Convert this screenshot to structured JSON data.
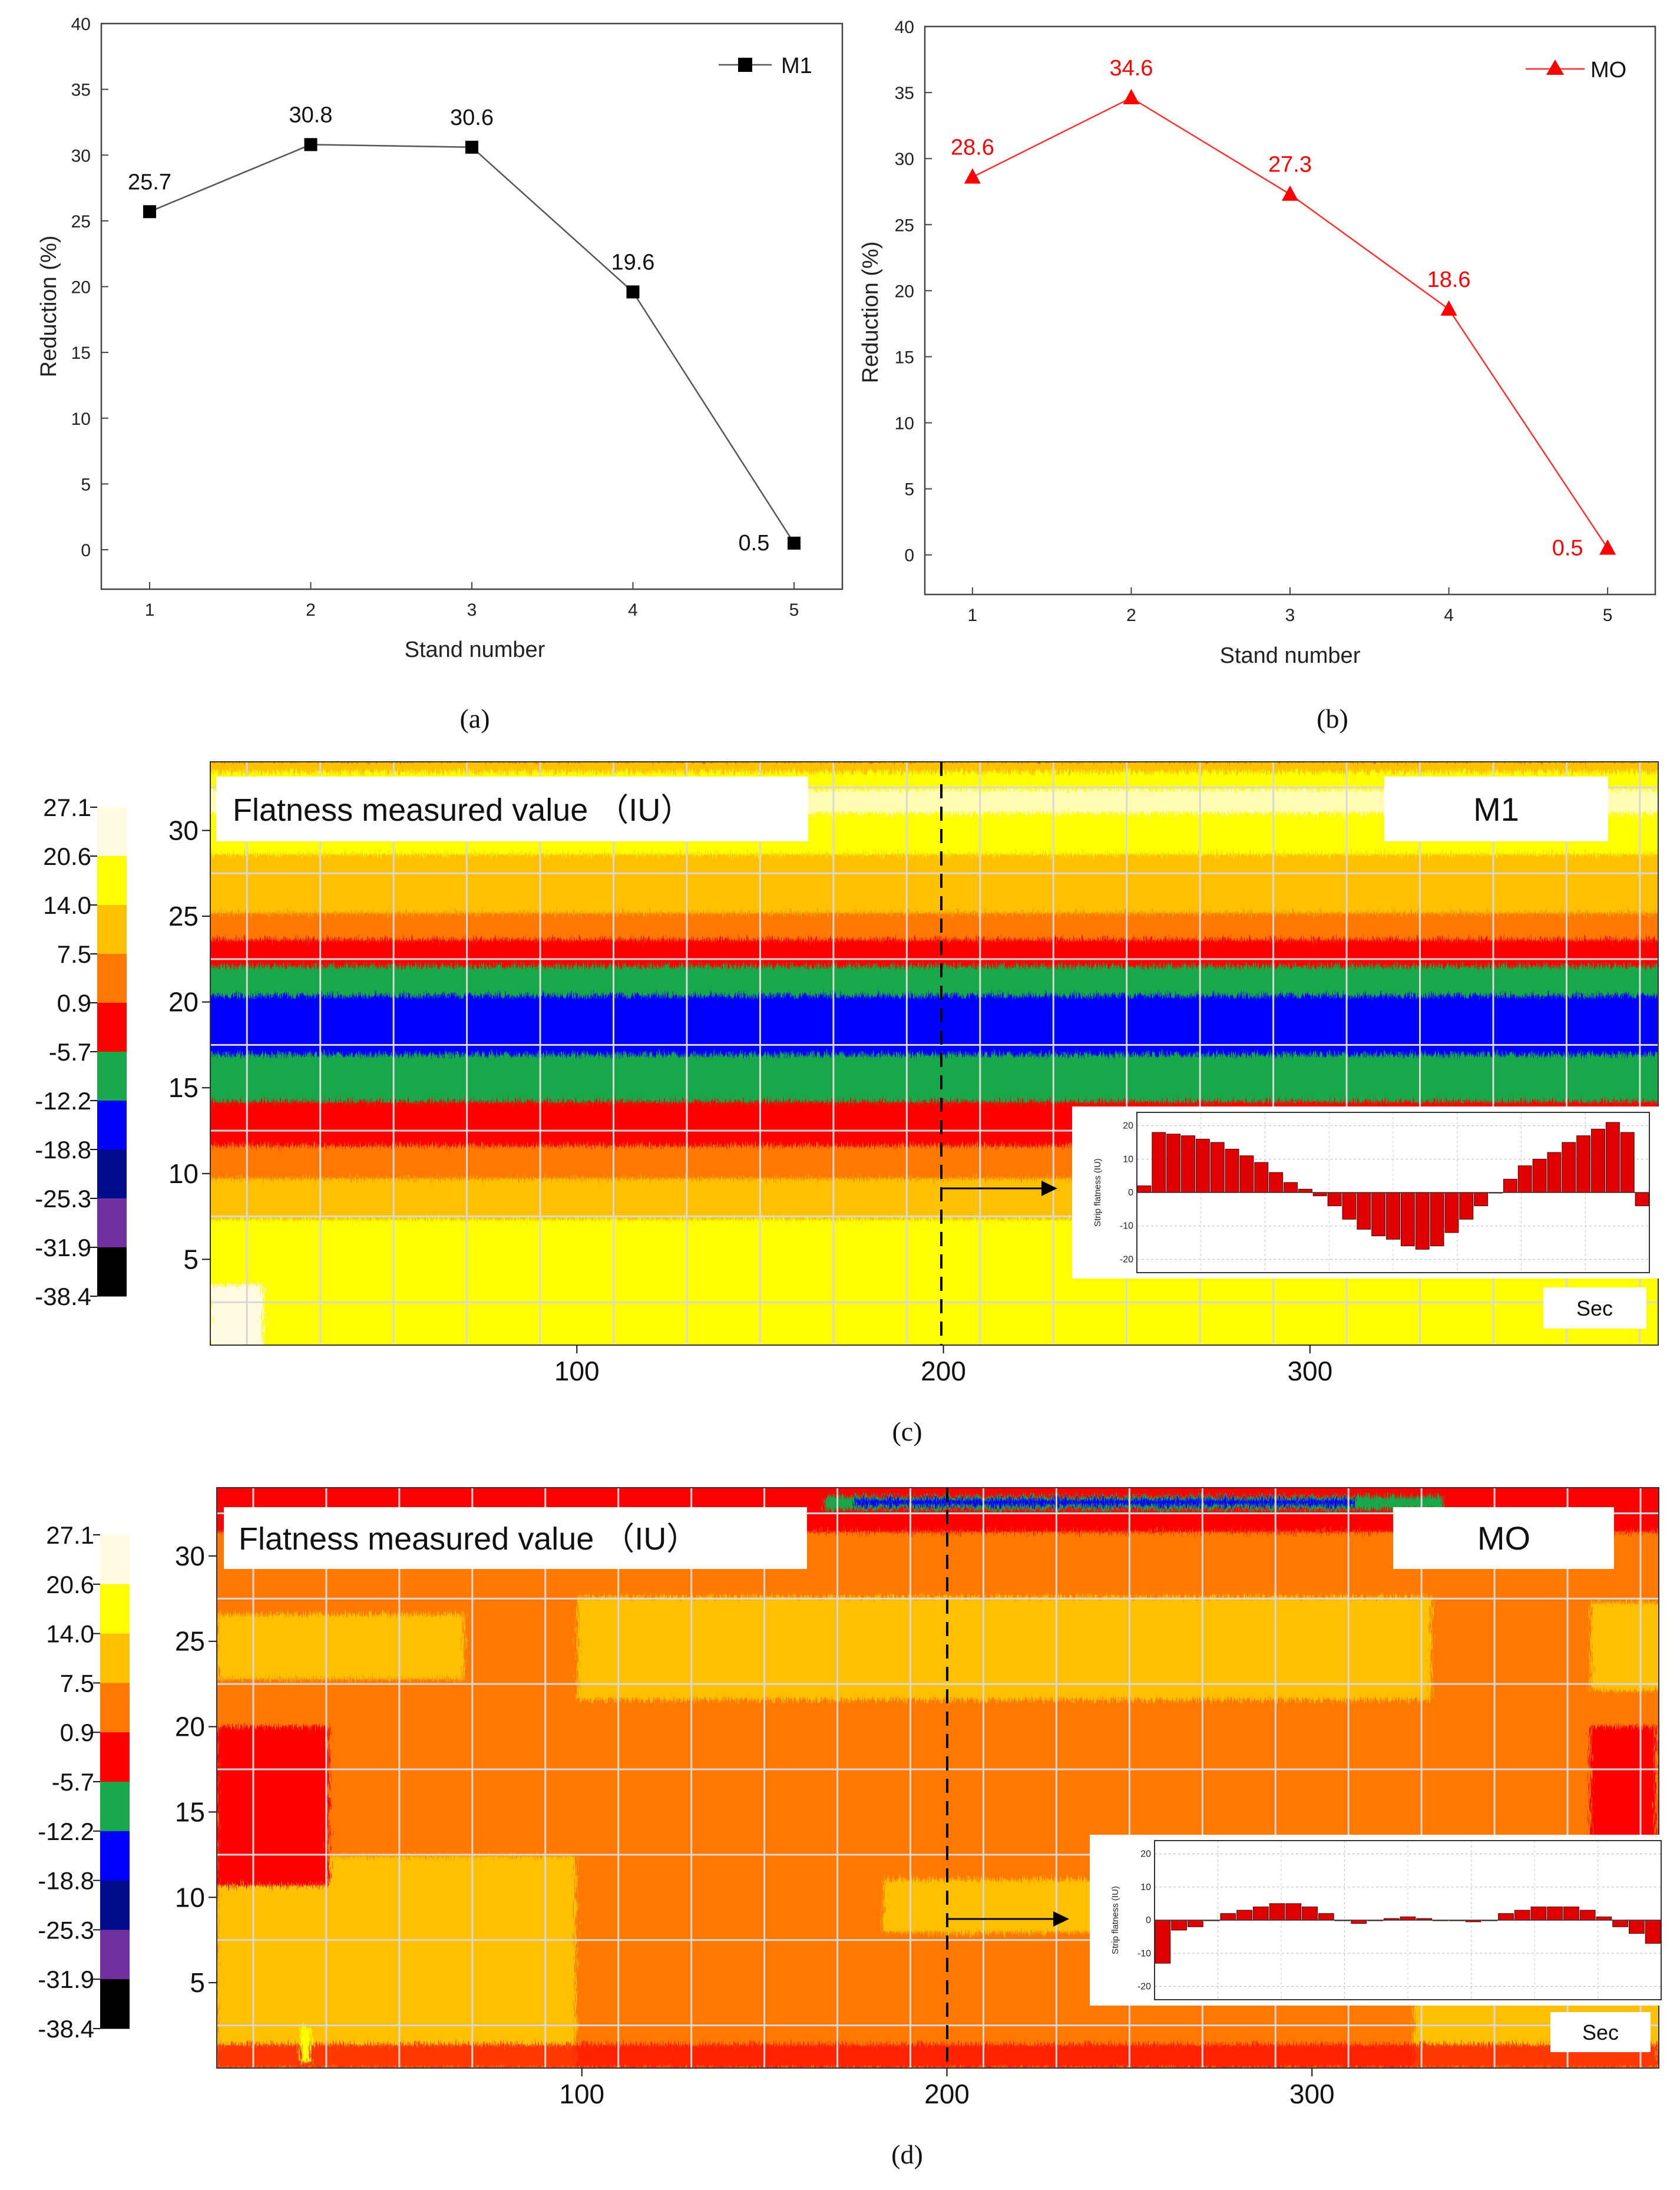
{
  "chart_data": [
    {
      "id": "a",
      "type": "line",
      "caption": "(a)",
      "xlabel": "Stand number",
      "ylabel": "Reduction (%)",
      "x": [
        1,
        2,
        3,
        4,
        5
      ],
      "xlim": [
        0.7,
        5.3
      ],
      "ylim": [
        -3,
        40
      ],
      "xticks": [
        "1",
        "2",
        "3",
        "4",
        "5"
      ],
      "yticks": [
        "0",
        "5",
        "10",
        "15",
        "20",
        "25",
        "30",
        "35",
        "40"
      ],
      "series": [
        {
          "name": "M1",
          "values": [
            25.7,
            30.8,
            30.6,
            19.6,
            0.5
          ],
          "labels": [
            "25.7",
            "30.8",
            "30.6",
            "19.6",
            "0.5"
          ],
          "color": "#000000",
          "marker": "square"
        }
      ],
      "legend": "top-right"
    },
    {
      "id": "b",
      "type": "line",
      "caption": "(b)",
      "xlabel": "Stand number",
      "ylabel": "Reduction (%)",
      "x": [
        1,
        2,
        3,
        4,
        5
      ],
      "xlim": [
        0.7,
        5.3
      ],
      "ylim": [
        -3,
        40
      ],
      "xticks": [
        "1",
        "2",
        "3",
        "4",
        "5"
      ],
      "yticks": [
        "0",
        "5",
        "10",
        "15",
        "20",
        "25",
        "30",
        "35",
        "40"
      ],
      "series": [
        {
          "name": "MO",
          "values": [
            28.6,
            34.6,
            27.3,
            18.6,
            0.5
          ],
          "labels": [
            "28.6",
            "34.6",
            "27.3",
            "18.6",
            "0.5"
          ],
          "color": "#ff0000",
          "marker": "triangle"
        }
      ],
      "legend": "top-right"
    },
    {
      "id": "c",
      "type": "heatmap",
      "caption": "(c)",
      "title": "Flatness measured value （IU）",
      "label": "M1",
      "xticks": [
        "100",
        "200",
        "300"
      ],
      "yticks": [
        "5",
        "10",
        "15",
        "20",
        "25",
        "30"
      ],
      "xlim": [
        0,
        395
      ],
      "ylim": [
        0,
        34
      ],
      "marker_x": 200,
      "inset": {
        "ylabel": "Strip flatness (IU)",
        "yticks": [
          "20",
          "10",
          "0",
          "-10",
          "-20"
        ],
        "ylim": [
          -24,
          24
        ],
        "tag": "Sec",
        "values": [
          2,
          18,
          17.5,
          17,
          16,
          15,
          13,
          11,
          9,
          6,
          3,
          1,
          -1,
          -4,
          -8,
          -11,
          -13,
          -14,
          -16,
          -17,
          -16,
          -12,
          -8,
          -4,
          0,
          4,
          8,
          10,
          12,
          15,
          17,
          19,
          21,
          18,
          -4
        ]
      }
    },
    {
      "id": "d",
      "type": "heatmap",
      "caption": "(d)",
      "title": "Flatness measured value （IU）",
      "label": "MO",
      "xticks": [
        "100",
        "200",
        "300"
      ],
      "yticks": [
        "5",
        "10",
        "15",
        "20",
        "25",
        "30"
      ],
      "xlim": [
        0,
        395
      ],
      "ylim": [
        0,
        34
      ],
      "marker_x": 200,
      "inset": {
        "ylabel": "Strip flatness (IU)",
        "yticks": [
          "20",
          "10",
          "0",
          "-10",
          "-20"
        ],
        "ylim": [
          -24,
          24
        ],
        "tag": "Sec",
        "values": [
          -13,
          -3,
          -2,
          0,
          2,
          3,
          4,
          5,
          5,
          4,
          2,
          0,
          -1,
          0,
          0.5,
          1,
          0.5,
          0,
          0,
          -0.5,
          0,
          2,
          3,
          4,
          4,
          4,
          3,
          1,
          -2,
          -4,
          -7
        ]
      }
    }
  ],
  "colorbar": {
    "ticks": [
      "27.1",
      "20.6",
      "14.0",
      "7.5",
      "0.9",
      "-5.7",
      "-12.2",
      "-18.8",
      "-25.3",
      "-31.9",
      "-38.4"
    ],
    "colors": [
      "#fffbe0",
      "#ffff00",
      "#ffc000",
      "#ff7800",
      "#ff0000",
      "#19a84a",
      "#0000ff",
      "#000c8c",
      "#7030a0",
      "#000000"
    ]
  }
}
